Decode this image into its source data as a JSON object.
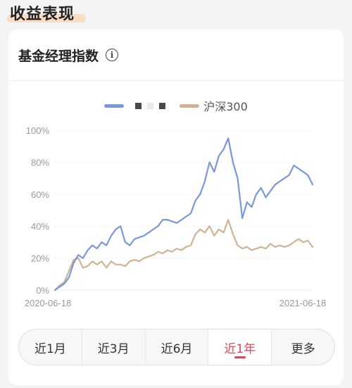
{
  "section": {
    "title": "收益表现"
  },
  "card": {
    "title": "基金经理指数",
    "info_icon": "info-icon"
  },
  "tabs": [
    {
      "label": "近1月",
      "active": false
    },
    {
      "label": "近3月",
      "active": false
    },
    {
      "label": "近6月",
      "active": false
    },
    {
      "label": "近1年",
      "active": true
    },
    {
      "label": "更多",
      "active": false
    }
  ],
  "colors": {
    "series_manager": "#7a97dc",
    "series_hs300": "#cfb394",
    "accent": "#e0455a"
  },
  "chart_data": {
    "type": "line",
    "xlabel": "",
    "ylabel": "",
    "x_ticks": [
      "2020-06-18",
      "2021-06-18"
    ],
    "y_ticks": [
      "0%",
      "20%",
      "40%",
      "60%",
      "80%",
      "100%"
    ],
    "ylim": [
      0,
      100
    ],
    "grid": true,
    "legend": "top-center",
    "series": [
      {
        "name": "",
        "values": [
          0,
          2,
          4,
          8,
          17,
          22,
          20,
          25,
          28,
          26,
          30,
          28,
          34,
          38,
          40,
          30,
          28,
          32,
          33,
          34,
          36,
          38,
          40,
          44,
          44,
          43,
          42,
          44,
          46,
          48,
          56,
          60,
          68,
          80,
          74,
          84,
          88,
          95,
          80,
          70,
          45,
          55,
          52,
          60,
          64,
          58,
          62,
          66,
          68,
          70,
          72,
          78,
          76,
          74,
          72,
          66
        ]
      },
      {
        "name": "沪深300",
        "values": [
          0,
          3,
          5,
          12,
          19,
          20,
          14,
          15,
          18,
          16,
          18,
          14,
          18,
          16,
          16,
          15,
          18,
          19,
          18,
          20,
          21,
          22,
          24,
          23,
          25,
          24,
          26,
          25,
          27,
          28,
          35,
          38,
          36,
          40,
          34,
          38,
          36,
          44,
          35,
          28,
          26,
          27,
          25,
          26,
          27,
          26,
          29,
          27,
          28,
          27,
          28,
          30,
          32,
          30,
          31,
          27
        ]
      }
    ]
  }
}
